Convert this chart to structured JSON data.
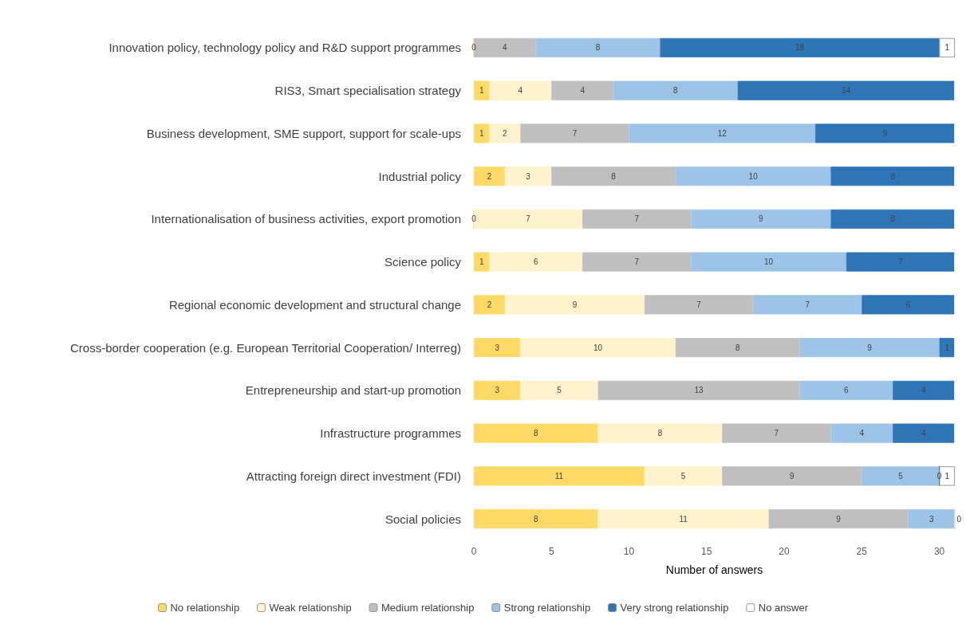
{
  "chart_data": {
    "type": "bar",
    "orientation": "horizontal",
    "stacked": true,
    "xlabel": "Number of answers",
    "categories": [
      "Innovation policy, technology policy and R&D support programmes",
      "RIS3, Smart specialisation strategy",
      "Business development, SME support, support for scale-ups",
      "Industrial policy",
      "Internationalisation of business activities, export promotion",
      "Science policy",
      "Regional economic development and structural change",
      "Cross-border cooperation (e.g. European Territorial Cooperation/ Interreg)",
      "Entrepreneurship and start-up promotion",
      "Infrastructure programmes",
      "Attracting foreign direct investment (FDI)",
      "Social policies"
    ],
    "series": [
      {
        "name": "No relationship",
        "color": "#ffd966",
        "values": [
          0,
          1,
          1,
          2,
          0,
          1,
          2,
          3,
          3,
          8,
          11,
          8
        ],
        "value_labels": [
          "0",
          "1",
          "1",
          "2",
          "0",
          "1",
          "2",
          "3",
          "3",
          "8",
          "11",
          "8"
        ]
      },
      {
        "name": "Weak relationship",
        "color": "#fff2cc",
        "values": [
          0,
          4,
          2,
          3,
          7,
          6,
          9,
          10,
          5,
          8,
          5,
          11
        ],
        "value_labels": [
          null,
          "4",
          "2",
          "3",
          "7",
          "6",
          "9",
          "10",
          "5",
          "8",
          "5",
          "11"
        ]
      },
      {
        "name": "Medium relationship",
        "color": "#bfbfbf",
        "values": [
          4,
          4,
          7,
          8,
          7,
          7,
          7,
          8,
          13,
          7,
          9,
          9
        ],
        "value_labels": [
          "4",
          "4",
          "7",
          "8",
          "7",
          "7",
          "7",
          "8",
          "13",
          "7",
          "9",
          "9"
        ]
      },
      {
        "name": "Strong relationship",
        "color": "#9dc3e6",
        "values": [
          8,
          8,
          12,
          10,
          9,
          10,
          7,
          9,
          6,
          4,
          5,
          3
        ],
        "value_labels": [
          "8",
          "8",
          "12",
          "10",
          "9",
          "10",
          "7",
          "9",
          "6",
          "4",
          "5",
          "3"
        ]
      },
      {
        "name": "Very strong relationship",
        "color": "#2e75b6",
        "values": [
          18,
          14,
          9,
          8,
          8,
          7,
          6,
          1,
          4,
          4,
          0,
          0
        ],
        "value_labels": [
          "18",
          "14",
          "9",
          "8",
          "8",
          "7",
          "6",
          "1",
          "4",
          "4",
          "0",
          "0"
        ]
      },
      {
        "name": "No answer",
        "color": "#ffffff",
        "values": [
          1,
          0,
          0,
          0,
          0,
          0,
          0,
          0,
          0,
          0,
          1,
          0
        ],
        "value_labels": [
          "1",
          null,
          null,
          null,
          null,
          null,
          null,
          null,
          null,
          null,
          "1",
          null
        ]
      }
    ],
    "xlim": [
      0,
      31
    ],
    "xticks": [
      0,
      5,
      10,
      15,
      20,
      25,
      30
    ],
    "grid": false,
    "legend": "bottom"
  }
}
